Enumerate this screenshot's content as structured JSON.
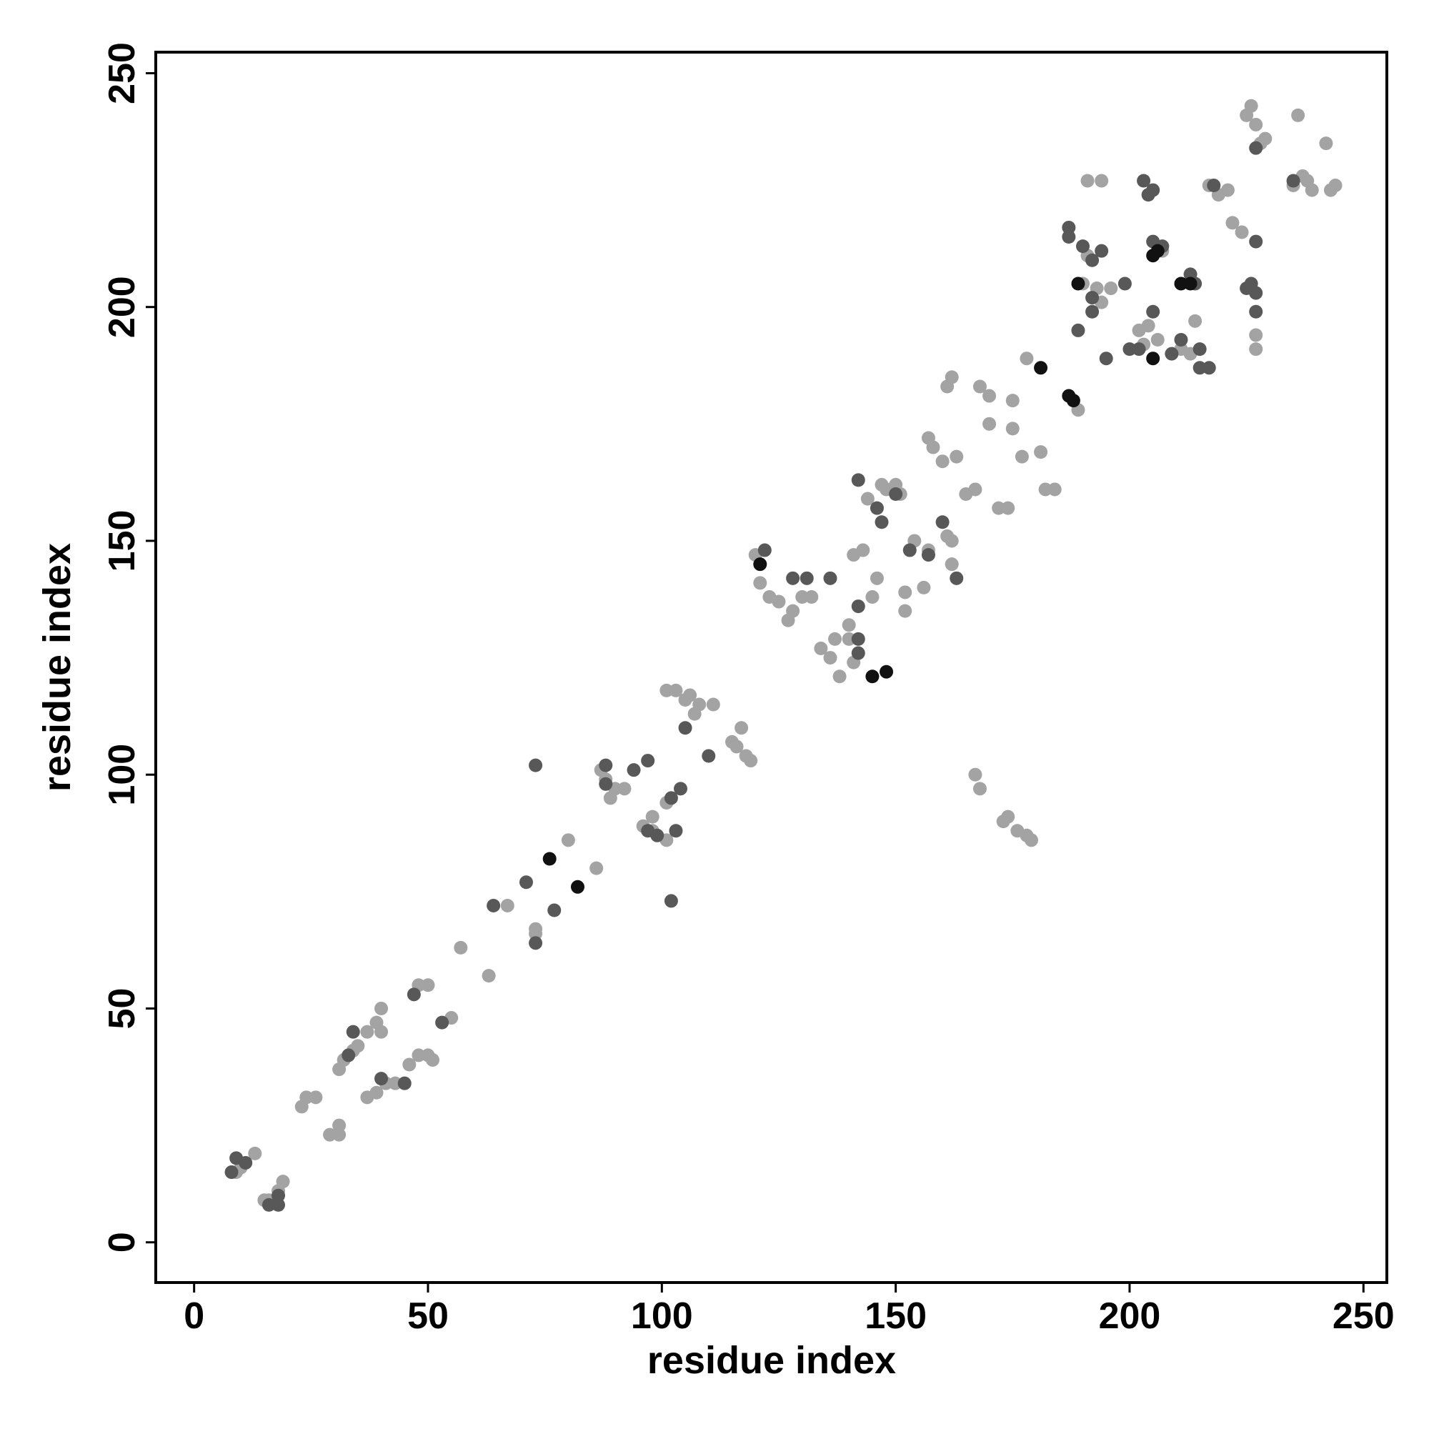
{
  "chart_data": {
    "type": "scatter",
    "xlabel": "residue index",
    "ylabel": "residue index",
    "xlim": [
      -8.2,
      255
    ],
    "ylim": [
      -8.6,
      254.5
    ],
    "xticks": [
      0,
      50,
      100,
      150,
      200,
      250
    ],
    "yticks": [
      0,
      50,
      100,
      150,
      200,
      250
    ],
    "series": [
      {
        "color": "#a3a3a3",
        "x": [
          9,
          10,
          13,
          15,
          16,
          18,
          19,
          23,
          24,
          26,
          29,
          31,
          31,
          31,
          32,
          34,
          35,
          37,
          39,
          37,
          39,
          40,
          40,
          41,
          43,
          46,
          48,
          50,
          51,
          48,
          50,
          55,
          57,
          63,
          67,
          73,
          73,
          80,
          86,
          87,
          88,
          89,
          90,
          92,
          96,
          98,
          98,
          101,
          101,
          101,
          103,
          105,
          106,
          107,
          108,
          111,
          115,
          116,
          117,
          118,
          119,
          120,
          121,
          123,
          125,
          127,
          128,
          130,
          132,
          134,
          136,
          137,
          138,
          140,
          140,
          141,
          141,
          143,
          144,
          145,
          146,
          147,
          148,
          150,
          151,
          152,
          152,
          154,
          156,
          157,
          157,
          158,
          160,
          161,
          162,
          162,
          161,
          162,
          163,
          165,
          167,
          167,
          168,
          168,
          170,
          170,
          172,
          173,
          174,
          176,
          178,
          179,
          174,
          175,
          175,
          177,
          178,
          181,
          182,
          184,
          189,
          191,
          194,
          190,
          191,
          193,
          194,
          196,
          202,
          203,
          204,
          206,
          207,
          211,
          213,
          214,
          217,
          219,
          221,
          222,
          224,
          225,
          226,
          227,
          228,
          229,
          227,
          227,
          235,
          236,
          237,
          238,
          239,
          242,
          243,
          244
        ],
        "y": [
          15,
          16,
          19,
          9,
          9,
          11,
          13,
          29,
          31,
          31,
          23,
          23,
          25,
          37,
          39,
          41,
          42,
          31,
          32,
          45,
          47,
          50,
          45,
          34,
          34,
          38,
          40,
          40,
          39,
          55,
          55,
          48,
          63,
          57,
          72,
          66,
          67,
          86,
          80,
          101,
          99,
          95,
          97,
          97,
          89,
          91,
          88,
          86,
          94,
          118,
          118,
          116,
          117,
          113,
          115,
          115,
          107,
          106,
          110,
          104,
          103,
          147,
          141,
          138,
          137,
          133,
          135,
          138,
          138,
          127,
          125,
          129,
          121,
          129,
          132,
          124,
          147,
          148,
          159,
          138,
          142,
          162,
          161,
          162,
          160,
          139,
          135,
          150,
          140,
          148,
          172,
          170,
          167,
          151,
          150,
          145,
          183,
          185,
          168,
          160,
          161,
          100,
          97,
          183,
          181,
          175,
          157,
          90,
          91,
          88,
          87,
          86,
          157,
          180,
          174,
          168,
          189,
          169,
          161,
          161,
          178,
          227,
          227,
          205,
          211,
          204,
          201,
          204,
          195,
          192,
          196,
          193,
          212,
          191,
          190,
          197,
          226,
          224,
          225,
          218,
          216,
          241,
          243,
          239,
          235,
          236,
          194,
          191,
          226,
          241,
          228,
          227,
          225,
          235,
          225,
          226
        ]
      },
      {
        "color": "#585858",
        "x": [
          8,
          9,
          11,
          16,
          18,
          18,
          33,
          34,
          40,
          45,
          47,
          53,
          64,
          71,
          73,
          73,
          77,
          88,
          88,
          94,
          97,
          97,
          99,
          102,
          102,
          103,
          104,
          105,
          110,
          122,
          128,
          131,
          136,
          142,
          142,
          142,
          142,
          146,
          147,
          150,
          153,
          157,
          160,
          163,
          187,
          187,
          190,
          192,
          192,
          192,
          194,
          195,
          199,
          200,
          202,
          203,
          204,
          205,
          205,
          205,
          207,
          209,
          211,
          213,
          214,
          215,
          215,
          217,
          218,
          225,
          226,
          227,
          227,
          227,
          227,
          235,
          189
        ],
        "y": [
          15,
          18,
          17,
          8,
          8,
          10,
          40,
          45,
          35,
          34,
          53,
          47,
          72,
          77,
          64,
          102,
          71,
          102,
          98,
          101,
          103,
          88,
          87,
          95,
          73,
          88,
          97,
          110,
          104,
          148,
          142,
          142,
          142,
          136,
          129,
          126,
          163,
          157,
          154,
          160,
          148,
          147,
          154,
          142,
          217,
          215,
          213,
          202,
          199,
          210,
          212,
          189,
          205,
          191,
          191,
          227,
          224,
          225,
          214,
          199,
          213,
          190,
          193,
          207,
          205,
          191,
          187,
          187,
          226,
          204,
          205,
          203,
          199,
          214,
          234,
          227,
          195
        ]
      },
      {
        "color": "#111111",
        "x": [
          76,
          82,
          121,
          145,
          148,
          181,
          187,
          189,
          205,
          205,
          206,
          211,
          213,
          188
        ],
        "y": [
          82,
          76,
          145,
          121,
          122,
          187,
          181,
          205,
          189,
          211,
          212,
          205,
          205,
          180
        ]
      }
    ]
  }
}
